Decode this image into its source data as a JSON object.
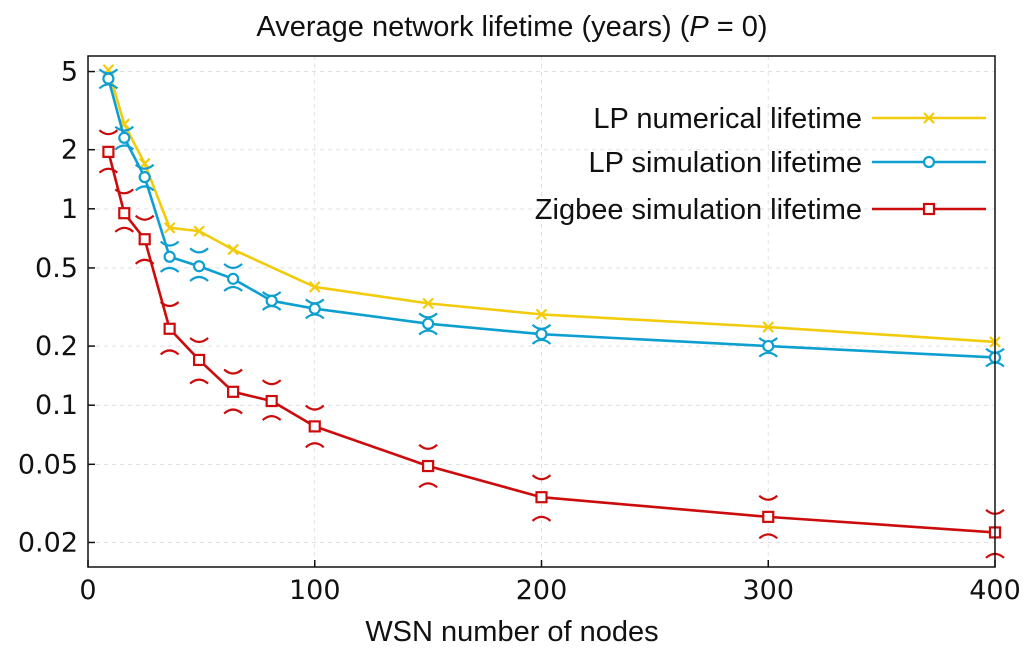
{
  "chart_data": {
    "type": "line",
    "title": "Average network lifetime (years) (P = 0)",
    "title_parts": {
      "prefix": "Average network lifetime (years) (",
      "var": "P",
      "suffix": " = 0)"
    },
    "xlabel": "WSN number of nodes",
    "ylabel": "",
    "xlim": [
      0,
      400
    ],
    "ylim": [
      0.015,
      6
    ],
    "yscale": "log",
    "grid": true,
    "legend_position": "top-right",
    "x_ticks": [
      0,
      100,
      200,
      300,
      400
    ],
    "x_tick_labels": [
      "0",
      "100",
      "200",
      "300",
      "400"
    ],
    "y_ticks": [
      0.02,
      0.05,
      0.1,
      0.2,
      0.5,
      1,
      2,
      5
    ],
    "y_tick_labels": [
      "0.02",
      "0.05",
      "0.1",
      "0.2",
      "0.5",
      "1",
      "2",
      "5"
    ],
    "series": [
      {
        "name": "LP numerical lifetime",
        "color": "#f2cc0c",
        "marker": "x",
        "x": [
          9,
          16,
          25,
          36,
          49,
          64,
          100,
          150,
          200,
          300,
          400
        ],
        "y": [
          5.1,
          2.7,
          1.7,
          0.8,
          0.77,
          0.62,
          0.4,
          0.33,
          0.29,
          0.25,
          0.21
        ],
        "err_low": [],
        "err_high": []
      },
      {
        "name": "LP simulation lifetime",
        "color": "#0e9fd1",
        "marker": "o",
        "x": [
          9,
          16,
          25,
          36,
          49,
          64,
          81,
          100,
          150,
          200,
          300,
          400
        ],
        "y": [
          4.6,
          2.3,
          1.45,
          0.57,
          0.51,
          0.44,
          0.34,
          0.31,
          0.26,
          0.23,
          0.2,
          0.175
        ],
        "err_low": [
          4.3,
          2.1,
          1.3,
          0.5,
          0.45,
          0.4,
          0.32,
          0.29,
          0.24,
          0.215,
          0.185,
          0.165
        ],
        "err_high": [
          4.9,
          2.5,
          1.6,
          0.65,
          0.6,
          0.5,
          0.36,
          0.33,
          0.28,
          0.245,
          0.21,
          0.185
        ]
      },
      {
        "name": "Zigbee simulation lifetime",
        "color": "#cc0c0c",
        "marker": "square",
        "x": [
          9,
          16,
          25,
          36,
          49,
          64,
          81,
          100,
          150,
          200,
          300,
          400
        ],
        "y": [
          1.95,
          0.95,
          0.7,
          0.245,
          0.17,
          0.117,
          0.105,
          0.078,
          0.049,
          0.034,
          0.027,
          0.0225
        ],
        "err_low": [
          1.6,
          0.8,
          0.55,
          0.19,
          0.135,
          0.095,
          0.088,
          0.064,
          0.04,
          0.027,
          0.022,
          0.0175
        ],
        "err_high": [
          2.4,
          1.2,
          0.88,
          0.32,
          0.21,
          0.145,
          0.128,
          0.095,
          0.06,
          0.042,
          0.033,
          0.028
        ]
      }
    ]
  }
}
